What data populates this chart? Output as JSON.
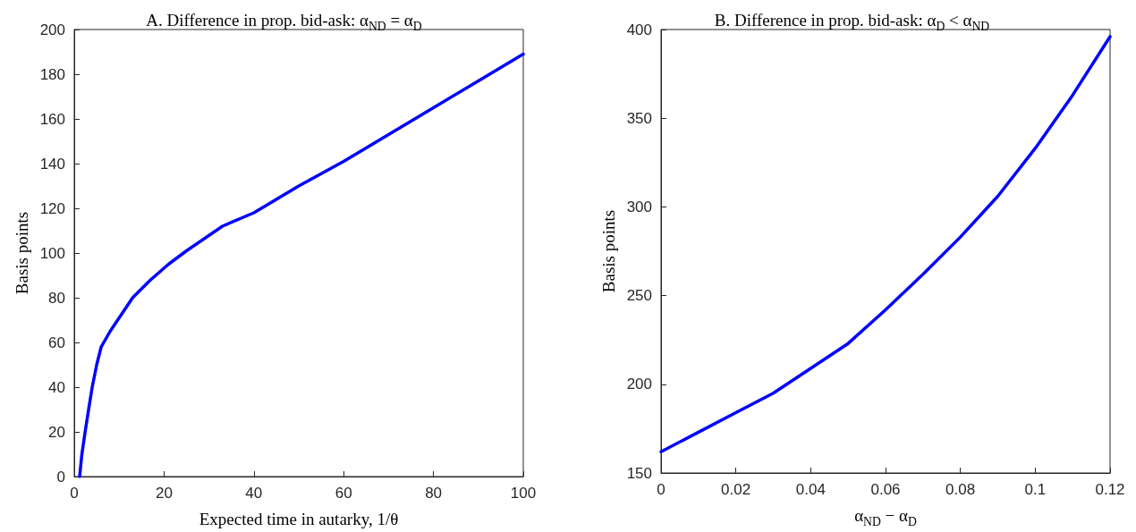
{
  "chart_data": [
    {
      "type": "line",
      "title": "A. Difference in prop. bid-ask: α$_{ND}$ = α$_{D}$",
      "xlabel": "Expected time in autarky, 1/θ",
      "ylabel": "Basis points",
      "xlim": [
        0,
        100
      ],
      "xticks": [
        0,
        20,
        40,
        60,
        80,
        100
      ],
      "ylim": [
        0,
        200
      ],
      "yticks": [
        0,
        20,
        40,
        60,
        80,
        100,
        120,
        140,
        160,
        180,
        200
      ],
      "marker": "none",
      "line_style": "solid",
      "x": [
        1.2,
        1.7,
        2.5,
        3.2,
        4,
        5,
        6,
        8,
        10,
        13,
        17,
        21,
        25,
        33,
        40,
        50,
        60,
        70,
        80,
        90,
        100
      ],
      "series": [
        {
          "color": "#0000ff",
          "values": [
            0,
            10,
            21,
            30,
            40,
            50,
            58,
            65,
            71,
            80,
            88,
            95,
            101,
            112,
            118,
            130,
            141,
            153,
            165,
            177,
            189
          ]
        }
      ]
    },
    {
      "type": "line",
      "title": "B. Difference in prop. bid-ask: α$_{D}$ < α$_{ND}$",
      "xlabel": "α$_{ND}$ − α$_{D}$",
      "ylabel": "Basis points",
      "xlim": [
        0,
        0.12
      ],
      "xticks": [
        0,
        0.02,
        0.04,
        0.06,
        0.08,
        0.1,
        0.12
      ],
      "ylim": [
        150,
        400
      ],
      "yticks": [
        150,
        200,
        250,
        300,
        350,
        400
      ],
      "marker": "none",
      "line_style": "solid",
      "x": [
        0,
        0.01,
        0.02,
        0.03,
        0.04,
        0.05,
        0.06,
        0.07,
        0.08,
        0.09,
        0.1,
        0.11,
        0.12
      ],
      "series": [
        {
          "color": "#0000ff",
          "values": [
            162,
            173,
            184,
            195,
            209,
            223,
            242,
            262,
            283,
            306,
            333,
            363,
            396
          ]
        }
      ]
    }
  ]
}
